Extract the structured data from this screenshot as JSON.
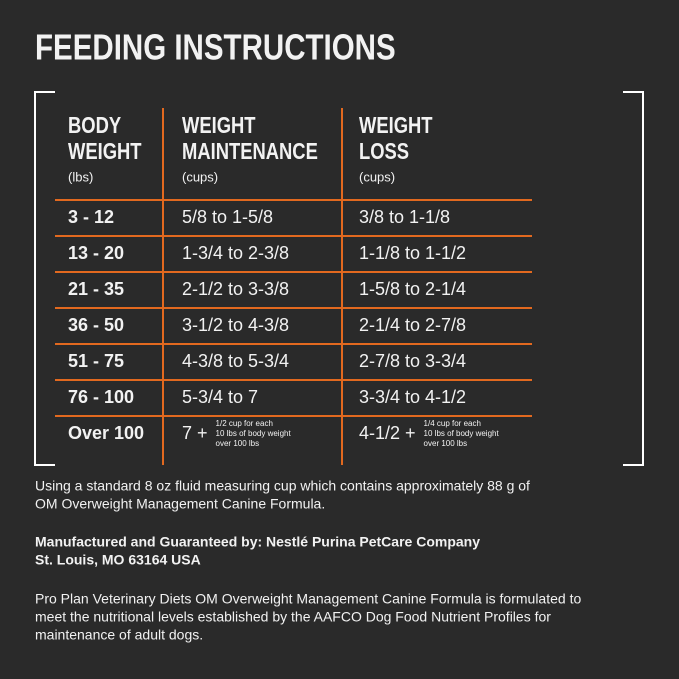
{
  "title": "FEEDING INSTRUCTIONS",
  "table": {
    "headers": [
      {
        "lines": [
          "BODY",
          "WEIGHT"
        ],
        "unit": "(lbs)"
      },
      {
        "lines": [
          "WEIGHT",
          "MAINTENANCE"
        ],
        "unit": "(cups)"
      },
      {
        "lines": [
          "WEIGHT",
          "LOSS"
        ],
        "unit": "(cups)"
      }
    ],
    "rows": [
      [
        "3 - 12",
        "5/8 to 1-5/8",
        "3/8 to 1-1/8"
      ],
      [
        "13 - 20",
        "1-3/4 to 2-3/8",
        "1-1/8 to 1-1/2"
      ],
      [
        "21 - 35",
        "2-1/2 to 3-3/8",
        "1-5/8 to 2-1/4"
      ],
      [
        "36 - 50",
        "3-1/2 to 4-3/8",
        "2-1/4 to 2-7/8"
      ],
      [
        "51 - 75",
        "4-3/8 to 5-3/4",
        "2-7/8 to 3-3/4"
      ],
      [
        "76 - 100",
        "5-3/4 to 7",
        "3-3/4 to 4-1/2"
      ],
      [
        "Over 100",
        {
          "text": "7 +",
          "note": [
            "1/2 cup for each",
            "10 lbs of body weight",
            "over 100 lbs"
          ]
        },
        {
          "text": "4-1/2 +",
          "note": [
            "1/4 cup for each",
            "10 lbs of body weight",
            "over 100 lbs"
          ]
        }
      ]
    ]
  },
  "paragraphs": [
    {
      "lines": [
        "Using a standard 8 oz fluid measuring cup which contains approximately 88 g of",
        "OM Overweight Management Canine Formula."
      ]
    },
    {
      "bold": true,
      "lines": [
        "Manufactured and Guaranteed by: Nestlé Purina PetCare Company",
        "St. Louis, MO 63164 USA"
      ]
    },
    {
      "lines": [
        "Pro Plan Veterinary Diets OM Overweight Management Canine Formula is formulated to",
        "meet the nutritional levels established by the AAFCO Dog Food Nutrient Profiles for",
        "maintenance of adult dogs."
      ]
    }
  ]
}
